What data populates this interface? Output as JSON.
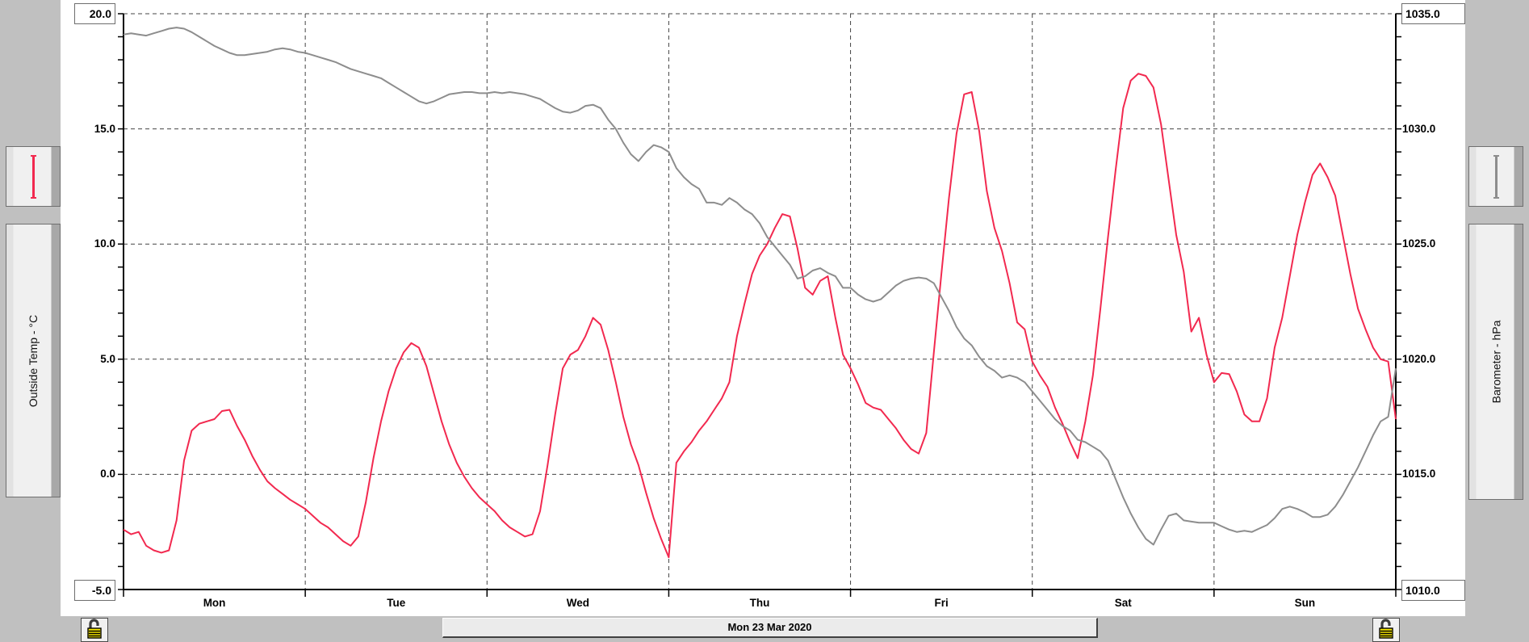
{
  "scrollbar": {
    "date_label": "Mon 23 Mar 2020"
  },
  "colors": {
    "background": "#c0c0c0",
    "panel": "#ffffff",
    "temp_line": "#f2294f",
    "baro_line": "#8d8d8d",
    "grid": "#444444",
    "axis": "#000000",
    "lock_body": "#f5e600",
    "lock_shackle": "#3c3c3c"
  },
  "icons": {
    "bottom_left": "unlock-icon",
    "bottom_right": "unlock-icon"
  },
  "chart_data": {
    "type": "line",
    "x_unit": "hours",
    "x_range_hours": [
      0,
      168
    ],
    "days": 7,
    "day_labels": [
      "Mon",
      "Tue",
      "Wed",
      "Thu",
      "Fri",
      "Sat",
      "Sun"
    ],
    "grid": "dashed; horizontal every 5 units, vertical at day boundaries; minor axis ticks every 1 unit",
    "legend_position": "vertical panels on left and right sides",
    "left_axis": {
      "label": "Outside Temp - °C",
      "min": -5,
      "max": 20,
      "max_label": "20.0",
      "min_label": "-5.0",
      "ticks": [
        "15.0",
        "10.0",
        "5.0",
        "0.0"
      ],
      "major_step": 5,
      "minor_step": 1
    },
    "right_axis": {
      "label": "Barometer - hPa",
      "min": 1010,
      "max": 1035,
      "max_label": "1035.0",
      "min_label": "1010.0",
      "ticks": [
        "1030.0",
        "1025.0",
        "1020.0",
        "1015.0"
      ],
      "major_step": 5,
      "minor_step": 1
    },
    "series": [
      {
        "name": "Outside Temp - °C",
        "axis": "left",
        "color": "#f2294f",
        "sample_interval_hours": 1,
        "values": [
          -2.4,
          -2.6,
          -2.5,
          -3.1,
          -3.3,
          -3.4,
          -3.3,
          -2.0,
          0.6,
          1.9,
          2.2,
          2.3,
          2.4,
          2.75,
          2.8,
          2.1,
          1.5,
          0.8,
          0.2,
          -0.3,
          -0.6,
          -0.85,
          -1.1,
          -1.3,
          -1.5,
          -1.8,
          -2.1,
          -2.3,
          -2.6,
          -2.9,
          -3.1,
          -2.7,
          -1.2,
          0.7,
          2.3,
          3.6,
          4.6,
          5.3,
          5.7,
          5.5,
          4.7,
          3.5,
          2.3,
          1.3,
          0.5,
          -0.1,
          -0.6,
          -1.0,
          -1.3,
          -1.6,
          -2.0,
          -2.3,
          -2.5,
          -2.7,
          -2.6,
          -1.6,
          0.4,
          2.6,
          4.6,
          5.2,
          5.4,
          6.0,
          6.8,
          6.5,
          5.4,
          4.0,
          2.5,
          1.3,
          0.4,
          -0.8,
          -1.9,
          -2.8,
          -3.6,
          0.5,
          1.0,
          1.4,
          1.9,
          2.3,
          2.8,
          3.3,
          4.0,
          6.0,
          7.4,
          8.7,
          9.5,
          10.0,
          10.7,
          11.3,
          11.2,
          9.8,
          8.1,
          7.8,
          8.4,
          8.6,
          6.8,
          5.2,
          4.6,
          3.9,
          3.1,
          2.9,
          2.8,
          2.4,
          2.0,
          1.5,
          1.1,
          0.9,
          1.8,
          5.3,
          8.7,
          12.0,
          14.8,
          16.5,
          16.6,
          14.9,
          12.3,
          10.7,
          9.7,
          8.3,
          6.6,
          6.3,
          4.9,
          4.3,
          3.8,
          2.9,
          2.2,
          1.4,
          0.7,
          2.3,
          4.3,
          7.2,
          10.3,
          13.2,
          15.9,
          17.1,
          17.4,
          17.3,
          16.8,
          15.2,
          12.8,
          10.4,
          8.8,
          6.2,
          6.8,
          5.2,
          4.0,
          4.4,
          4.35,
          3.6,
          2.6,
          2.3,
          2.3,
          3.3,
          5.5,
          6.8,
          8.6,
          10.4,
          11.8,
          13.0,
          13.5,
          12.9,
          12.1,
          10.4,
          8.7,
          7.2,
          6.3,
          5.5,
          5.0,
          4.9,
          2.4
        ]
      },
      {
        "name": "Barometer - hPa",
        "axis": "right",
        "color": "#8d8d8d",
        "sample_interval_hours": 1,
        "values": [
          1034.1,
          1034.15,
          1034.1,
          1034.05,
          1034.15,
          1034.25,
          1034.35,
          1034.4,
          1034.35,
          1034.2,
          1034.0,
          1033.8,
          1033.6,
          1033.45,
          1033.3,
          1033.2,
          1033.2,
          1033.25,
          1033.3,
          1033.35,
          1033.45,
          1033.5,
          1033.45,
          1033.35,
          1033.3,
          1033.2,
          1033.1,
          1033.0,
          1032.9,
          1032.75,
          1032.6,
          1032.5,
          1032.4,
          1032.3,
          1032.2,
          1032.0,
          1031.8,
          1031.6,
          1031.4,
          1031.2,
          1031.1,
          1031.2,
          1031.35,
          1031.5,
          1031.55,
          1031.6,
          1031.6,
          1031.55,
          1031.55,
          1031.6,
          1031.55,
          1031.6,
          1031.55,
          1031.5,
          1031.4,
          1031.3,
          1031.1,
          1030.9,
          1030.75,
          1030.7,
          1030.8,
          1031.0,
          1031.05,
          1030.9,
          1030.4,
          1030.0,
          1029.4,
          1028.9,
          1028.6,
          1029.0,
          1029.3,
          1029.2,
          1029.0,
          1028.3,
          1027.9,
          1027.6,
          1027.4,
          1026.8,
          1026.8,
          1026.7,
          1027.0,
          1026.8,
          1026.5,
          1026.3,
          1025.9,
          1025.3,
          1024.9,
          1024.5,
          1024.1,
          1023.5,
          1023.6,
          1023.85,
          1023.95,
          1023.75,
          1023.6,
          1023.1,
          1023.1,
          1022.8,
          1022.6,
          1022.5,
          1022.6,
          1022.9,
          1023.2,
          1023.4,
          1023.5,
          1023.55,
          1023.5,
          1023.3,
          1022.7,
          1022.1,
          1021.4,
          1020.9,
          1020.6,
          1020.1,
          1019.7,
          1019.5,
          1019.2,
          1019.3,
          1019.2,
          1019.0,
          1018.6,
          1018.2,
          1017.8,
          1017.4,
          1017.1,
          1016.9,
          1016.5,
          1016.4,
          1016.2,
          1016.0,
          1015.6,
          1014.8,
          1014.0,
          1013.3,
          1012.7,
          1012.2,
          1011.95,
          1012.6,
          1013.2,
          1013.3,
          1013.0,
          1012.95,
          1012.9,
          1012.9,
          1012.9,
          1012.75,
          1012.6,
          1012.5,
          1012.55,
          1012.5,
          1012.65,
          1012.8,
          1013.1,
          1013.5,
          1013.6,
          1013.5,
          1013.35,
          1013.15,
          1013.15,
          1013.25,
          1013.6,
          1014.1,
          1014.7,
          1015.3,
          1016.0,
          1016.7,
          1017.3,
          1017.5,
          1019.6
        ]
      }
    ]
  }
}
